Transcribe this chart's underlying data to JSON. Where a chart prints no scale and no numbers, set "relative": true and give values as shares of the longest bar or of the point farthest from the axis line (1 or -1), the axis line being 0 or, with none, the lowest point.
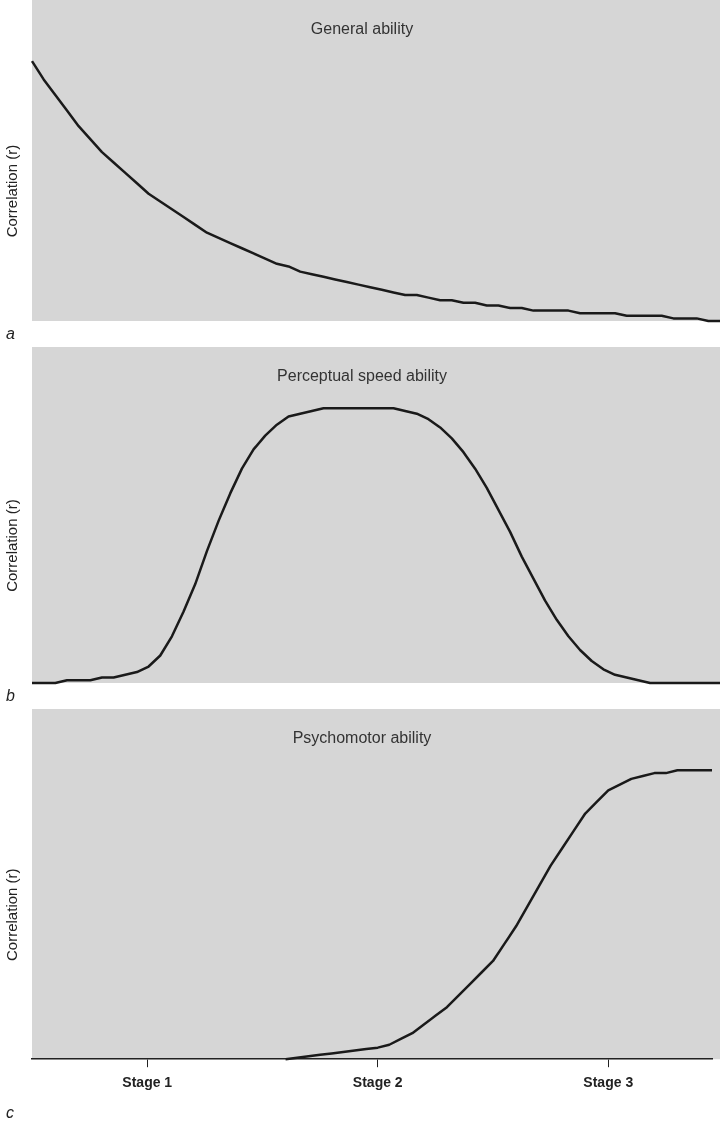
{
  "chart_data": [
    {
      "type": "line",
      "title": "General ability",
      "ylabel": "Correlation (r)",
      "relative": true,
      "tick_labels": false,
      "annotations": [
        "a"
      ],
      "categories": [
        null,
        null,
        null,
        null,
        null,
        null,
        null,
        null,
        null,
        null,
        null,
        null,
        null,
        null,
        null,
        null,
        null,
        null,
        null,
        null,
        null,
        null,
        null,
        null,
        null,
        null,
        null,
        null,
        null,
        null,
        null,
        null,
        null,
        null,
        null,
        null,
        null,
        null,
        null,
        null,
        null,
        null,
        null,
        null,
        null,
        null,
        null,
        null,
        null,
        null,
        null,
        null,
        null,
        null,
        null,
        null,
        null,
        null,
        null,
        null
      ],
      "series": [
        {
          "color": "#1a1a1a",
          "values": [
            1,
            0.93,
            0.87,
            0.81,
            0.75,
            0.7,
            0.65,
            0.61,
            0.57,
            0.53,
            0.49,
            0.46,
            0.43,
            0.4,
            0.37,
            0.34,
            0.32,
            0.3,
            0.28,
            0.26,
            0.24,
            0.22,
            0.21,
            0.19,
            0.18,
            0.17,
            0.16,
            0.15,
            0.14,
            0.13,
            0.12,
            0.11,
            0.1,
            0.1,
            0.09,
            0.08,
            0.08,
            0.07,
            0.07,
            0.06,
            0.06,
            0.05,
            0.05,
            0.04,
            0.04,
            0.04,
            0.04,
            0.03,
            0.03,
            0.03,
            0.03,
            0.02,
            0.02,
            0.02,
            0.02,
            0.01,
            0.01,
            0.01,
            0,
            0
          ]
        }
      ]
    },
    {
      "type": "line",
      "title": "Perceptual speed ability",
      "ylabel": "Correlation (r)",
      "relative": true,
      "tick_labels": false,
      "annotations": [
        "b"
      ],
      "categories": [
        null,
        null,
        null,
        null,
        null,
        null,
        null,
        null,
        null,
        null,
        null,
        null,
        null,
        null,
        null,
        null,
        null,
        null,
        null,
        null,
        null,
        null,
        null,
        null,
        null,
        null,
        null,
        null,
        null,
        null,
        null,
        null,
        null,
        null,
        null,
        null,
        null,
        null,
        null,
        null,
        null,
        null,
        null,
        null,
        null,
        null,
        null,
        null,
        null,
        null,
        null,
        null,
        null,
        null,
        null,
        null,
        null,
        null,
        null,
        null
      ],
      "series": [
        {
          "color": "#1a1a1a",
          "values": [
            0,
            0,
            0,
            0.01,
            0.01,
            0.01,
            0.02,
            0.02,
            0.03,
            0.04,
            0.06,
            0.1,
            0.17,
            0.26,
            0.36,
            0.48,
            0.59,
            0.69,
            0.78,
            0.85,
            0.9,
            0.94,
            0.97,
            0.98,
            0.99,
            1,
            1,
            1,
            1,
            1,
            1,
            1,
            0.99,
            0.98,
            0.96,
            0.93,
            0.89,
            0.84,
            0.78,
            0.71,
            0.63,
            0.55,
            0.46,
            0.38,
            0.3,
            0.23,
            0.17,
            0.12,
            0.08,
            0.05,
            0.03,
            0.02,
            0.01,
            0,
            0,
            0,
            0,
            0,
            0,
            0
          ]
        }
      ]
    },
    {
      "type": "line",
      "title": "Psychomotor ability",
      "ylabel": "Correlation (r)",
      "relative": true,
      "annotations": [
        "c"
      ],
      "categories": [
        null,
        null,
        null,
        null,
        null,
        null,
        null,
        null,
        null,
        null,
        "Stage 1",
        null,
        null,
        null,
        null,
        null,
        null,
        null,
        null,
        null,
        null,
        null,
        null,
        null,
        null,
        null,
        null,
        null,
        null,
        null,
        "Stage 2",
        null,
        null,
        null,
        null,
        null,
        null,
        null,
        null,
        null,
        null,
        null,
        null,
        null,
        null,
        null,
        null,
        null,
        null,
        null,
        "Stage 3",
        null,
        null,
        null,
        null,
        null,
        null,
        null,
        null,
        null
      ],
      "series": [
        {
          "color": "#1a1a1a",
          "values": [
            null,
            null,
            null,
            null,
            null,
            null,
            null,
            null,
            null,
            null,
            null,
            null,
            null,
            null,
            null,
            null,
            null,
            null,
            null,
            null,
            null,
            null,
            0,
            0.005,
            0.01,
            0.015,
            0.02,
            0.025,
            0.03,
            0.035,
            0.04,
            0.05,
            0.07,
            0.09,
            0.12,
            0.15,
            0.18,
            0.22,
            0.26,
            0.3,
            0.34,
            0.4,
            0.46,
            0.53,
            0.6,
            0.67,
            0.73,
            0.79,
            0.85,
            0.89,
            0.93,
            0.95,
            0.97,
            0.98,
            0.99,
            0.99,
            1,
            1,
            1,
            1
          ]
        }
      ]
    }
  ]
}
